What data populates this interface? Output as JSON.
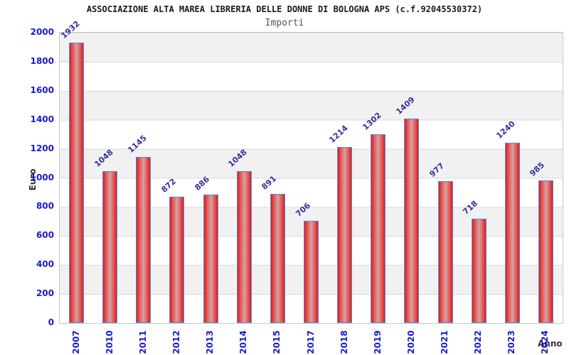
{
  "header": {
    "title": "ASSOCIAZIONE ALTA MAREA LIBRERIA DELLE DONNE DI BOLOGNA APS (c.f.92045530372)",
    "subtitle": "Importi"
  },
  "chart_data": {
    "type": "bar",
    "title": "ASSOCIAZIONE ALTA MAREA LIBRERIA DELLE DONNE DI BOLOGNA APS (c.f.92045530372)",
    "subtitle": "Importi",
    "xlabel": "Anno",
    "ylabel": "Euro",
    "categories": [
      "2007",
      "2010",
      "2011",
      "2012",
      "2013",
      "2014",
      "2015",
      "2017",
      "2018",
      "2019",
      "2020",
      "2021",
      "2022",
      "2023",
      "2024"
    ],
    "values": [
      1932,
      1048,
      1145,
      872,
      886,
      1048,
      891,
      706,
      1214,
      1302,
      1409,
      977,
      718,
      1240,
      985
    ],
    "ylim": [
      0,
      2000
    ],
    "yticks": [
      0,
      200,
      400,
      600,
      800,
      1000,
      1200,
      1400,
      1600,
      1800,
      2000
    ],
    "grid": "horizontal-bands-every-200",
    "legend": "none",
    "colors": {
      "bar_fill_edge": "#dd1b1b",
      "bar_fill_center": "#d0a0a0",
      "bar_border": "#4d94e0",
      "tick_label": "#1a1acc",
      "value_label": "#32329b",
      "band_grey": "#f1f1f1",
      "gridline": "#d9d9d9",
      "plot_border": "#c9c9c9",
      "title_color": "#1a1a1a",
      "subtitle_color": "#555555",
      "axis_name_color": "#333333"
    }
  }
}
